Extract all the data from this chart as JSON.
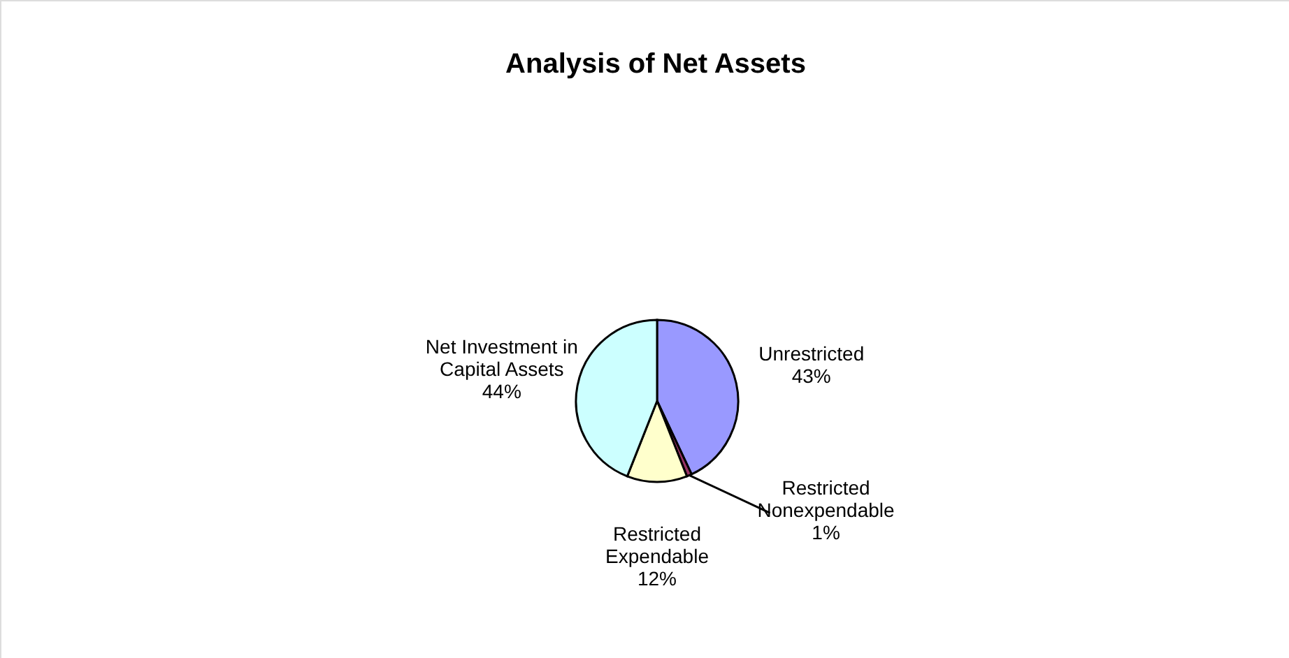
{
  "chart_data": {
    "type": "pie",
    "title": "Analysis of Net Assets",
    "categories": [
      "Unrestricted",
      "Restricted\nNonexpendable",
      "Restricted\nExpendable",
      "Net Investment in\nCapital Assets"
    ],
    "values": [
      43,
      1,
      12,
      44
    ],
    "colors": [
      "#9999ff",
      "#993366",
      "#ffffcc",
      "#ccffff"
    ],
    "value_labels": [
      "43%",
      "1%",
      "12%",
      "44%"
    ]
  }
}
